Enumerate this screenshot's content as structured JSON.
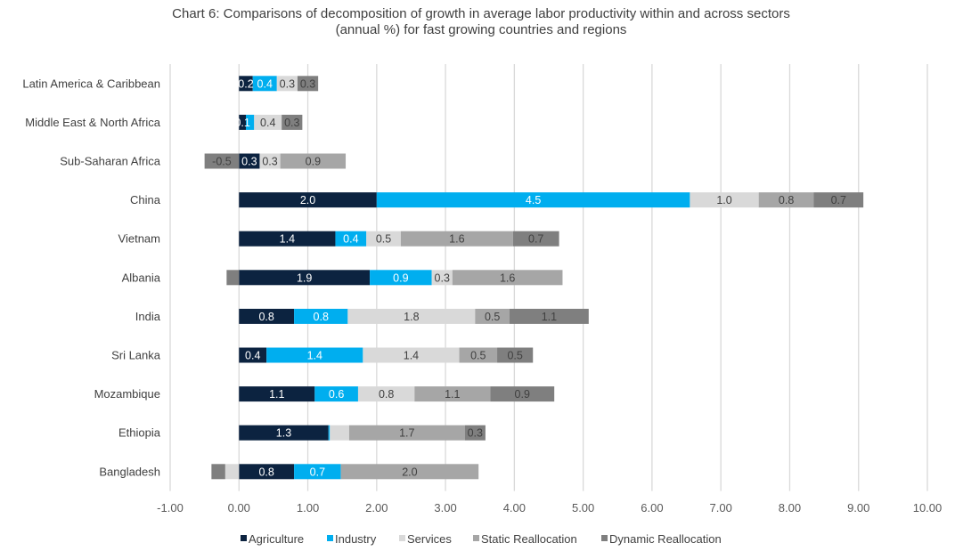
{
  "chart_data": {
    "type": "bar",
    "orientation": "horizontal",
    "stacked": true,
    "title": "Chart 6: Comparisons of decomposition of growth in average labor productivity within and across sectors (annual %) for fast growing countries and regions",
    "title_lines": [
      "Chart 6: Comparisons of decomposition of growth in average labor productivity within and across sectors",
      "(annual %) for fast growing countries and regions"
    ],
    "categories": [
      "Latin America & Caribbean",
      "Middle East & North Africa",
      "Sub-Saharan Africa",
      "China",
      "Vietnam",
      "Albania",
      "India",
      "Sri Lanka",
      "Mozambique",
      "Ethiopia",
      "Bangladesh"
    ],
    "xlim": [
      -1,
      10
    ],
    "x_ticks": [
      -1,
      0,
      1,
      2,
      3,
      4,
      5,
      6,
      7,
      8,
      9,
      10
    ],
    "x_tick_labels": [
      "-1.00",
      "0.00",
      "1.00",
      "2.00",
      "3.00",
      "4.00",
      "5.00",
      "6.00",
      "7.00",
      "8.00",
      "9.00",
      "10.00"
    ],
    "grid": "vertical",
    "legend_position": "bottom",
    "series": [
      {
        "name": "Agriculture",
        "color": "#0c2340",
        "label_color": "#ffffff",
        "values": [
          0.2,
          0.1,
          0.3,
          2.0,
          1.4,
          1.9,
          0.8,
          0.4,
          1.1,
          1.3,
          0.8
        ],
        "labels": [
          "0.2",
          "0.1",
          "0.3",
          "2.0",
          "1.4",
          "1.9",
          "0.8",
          "0.4",
          "1.1",
          "1.3",
          "0.8"
        ]
      },
      {
        "name": "Industry",
        "color": "#00aeef",
        "label_color": "#ffffff",
        "values": [
          0.35,
          0.12,
          0.0,
          4.55,
          0.45,
          0.9,
          0.78,
          1.4,
          0.63,
          0.02,
          0.68
        ],
        "labels": [
          "0.4",
          "",
          "",
          "4.5",
          "0.4",
          "0.9",
          "0.8",
          "1.4",
          "0.6",
          "",
          "0.7"
        ]
      },
      {
        "name": "Services",
        "color": "#d9d9d9",
        "label_color": "#404040",
        "values": [
          0.3,
          0.4,
          0.3,
          1.0,
          0.5,
          0.3,
          1.85,
          1.4,
          0.82,
          0.28,
          -0.2
        ],
        "labels": [
          "0.3",
          "0.4",
          "0.3",
          "1.0",
          "0.5",
          "0.3",
          "1.8",
          "1.4",
          "0.8",
          "",
          ""
        ]
      },
      {
        "name": "Static Reallocation",
        "color": "#a6a6a6",
        "label_color": "#404040",
        "values": [
          0.0,
          0.0,
          0.95,
          0.8,
          1.63,
          1.6,
          0.5,
          0.55,
          1.1,
          1.68,
          2.0
        ],
        "labels": [
          "",
          "",
          "0.9",
          "0.8",
          "1.6",
          "1.6",
          "0.5",
          "0.5",
          "1.1",
          "1.7",
          "2.0"
        ]
      },
      {
        "name": "Dynamic Reallocation",
        "color": "#7f7f7f",
        "label_color": "#404040",
        "values": [
          0.3,
          0.3,
          -0.5,
          0.72,
          0.67,
          -0.18,
          1.15,
          0.52,
          0.93,
          0.3,
          -0.2
        ],
        "labels": [
          "0.3",
          "0.3",
          "-0.5",
          "0.7",
          "0.7",
          "",
          "1.1",
          "0.5",
          "0.9",
          "0.3",
          ""
        ]
      }
    ]
  }
}
